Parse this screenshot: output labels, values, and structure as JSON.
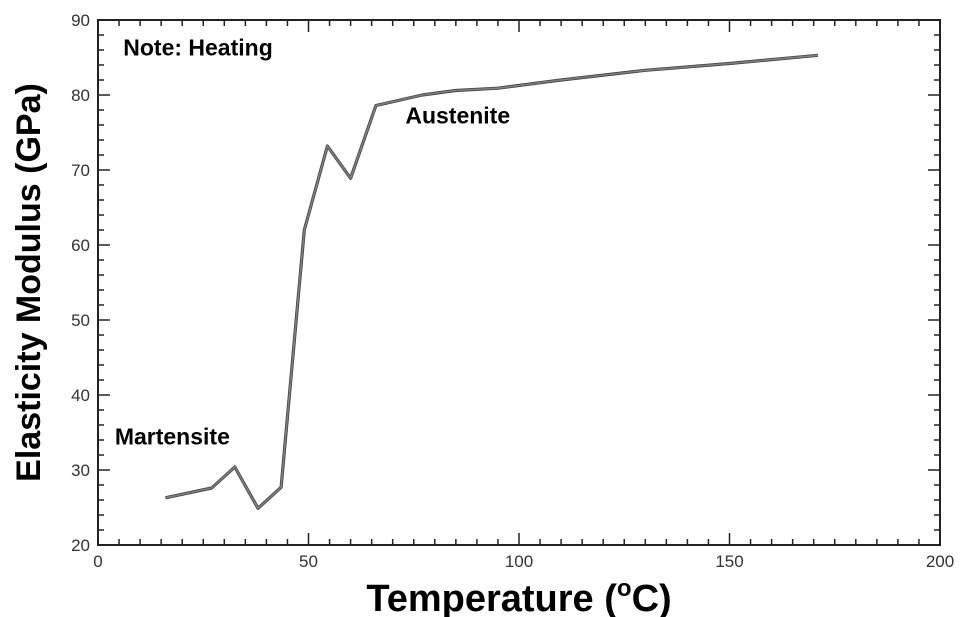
{
  "chart_data": {
    "type": "line",
    "title": "",
    "xlabel": "Temperature (",
    "xlabel_sup": "o",
    "xlabel_suffix": "C)",
    "ylabel": "Elasticity Modulus (GPa)",
    "xlim": [
      0,
      200
    ],
    "ylim": [
      20,
      90
    ],
    "x_ticks": [
      0,
      50,
      100,
      150,
      200
    ],
    "x_tick_labels": [
      "0",
      "50",
      "100",
      "150",
      "200"
    ],
    "y_ticks": [
      20,
      30,
      40,
      50,
      60,
      70,
      80,
      90
    ],
    "y_tick_labels": [
      "20",
      "30",
      "40",
      "50",
      "60",
      "70",
      "80",
      "90"
    ],
    "grid": false,
    "series": [
      {
        "x": [
          16,
          27,
          32.5,
          38,
          43.5,
          49,
          54.5,
          60,
          66,
          77,
          85,
          95,
          110,
          130,
          150,
          171
        ],
        "y": [
          26.3,
          27.6,
          30.4,
          24.9,
          27.7,
          62,
          73.2,
          68.9,
          78.6,
          80,
          80.6,
          80.9,
          82,
          83.3,
          84.2,
          85.3
        ],
        "color": "#7f7f7f"
      }
    ],
    "annotations": [
      {
        "text": "Note: Heating",
        "x": 6,
        "y": 85.3
      },
      {
        "text": "Martensite",
        "x": 4,
        "y": 33.4
      },
      {
        "text": "Austenite",
        "x": 73,
        "y": 76.2
      }
    ]
  }
}
